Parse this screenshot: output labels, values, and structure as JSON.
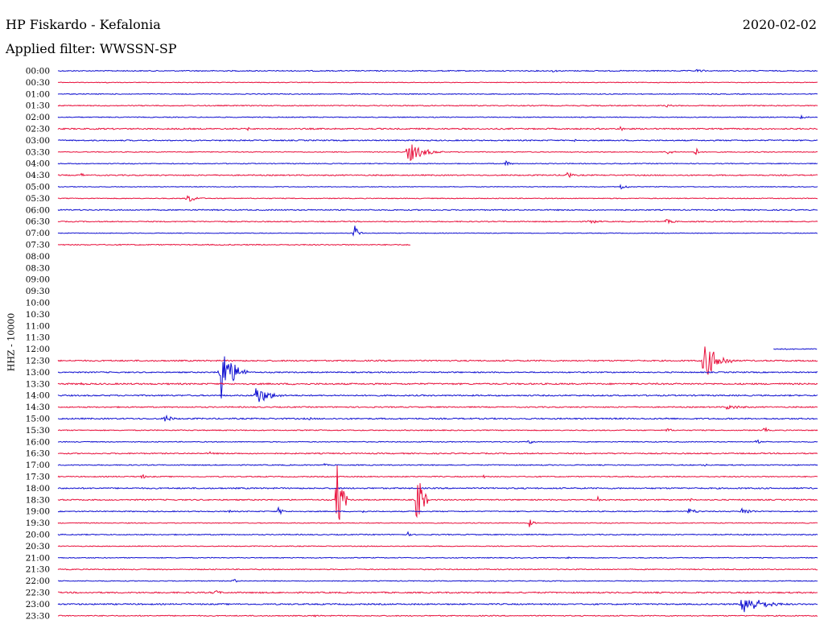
{
  "header": {
    "station": "HP Fiskardo - Kefalonia",
    "filter": "Applied filter: WWSSN-SP",
    "date": "2020-02-02"
  },
  "chart_data": {
    "type": "line",
    "title": "HP Fiskardo - Kefalonia",
    "subtitle": "Applied filter: WWSSN-SP",
    "date": "2020-02-02",
    "ylabel": "HHZ - 10000",
    "xlabel": "",
    "grid": false,
    "colors": {
      "even_rows": "#1010d0",
      "odd_rows": "#e8103c"
    },
    "row_labels": [
      "00:00",
      "00:30",
      "01:00",
      "01:30",
      "02:00",
      "02:30",
      "03:00",
      "03:30",
      "04:00",
      "04:30",
      "05:00",
      "05:30",
      "06:00",
      "06:30",
      "07:00",
      "07:30",
      "08:00",
      "08:30",
      "09:00",
      "09:30",
      "10:00",
      "10:30",
      "11:00",
      "11:30",
      "12:00",
      "12:30",
      "13:00",
      "13:30",
      "14:00",
      "14:30",
      "15:00",
      "15:30",
      "16:00",
      "16:30",
      "17:00",
      "17:30",
      "18:00",
      "18:30",
      "19:00",
      "19:30",
      "20:00",
      "20:30",
      "21:00",
      "21:30",
      "22:00",
      "22:30",
      "23:00",
      "23:30"
    ],
    "traces": [
      {
        "row": 0,
        "start": 0,
        "end": 1,
        "noise": 0.6,
        "events": [
          [
            0.65,
            2,
            20
          ],
          [
            0.84,
            2,
            40
          ]
        ]
      },
      {
        "row": 1,
        "start": 0,
        "end": 1,
        "noise": 0.4,
        "events": [
          [
            0.063,
            2,
            6
          ]
        ]
      },
      {
        "row": 2,
        "start": 0,
        "end": 1,
        "noise": 0.5,
        "events": []
      },
      {
        "row": 3,
        "start": 0,
        "end": 1,
        "noise": 0.6,
        "events": [
          [
            0.71,
            2,
            6
          ],
          [
            0.8,
            2,
            30
          ]
        ]
      },
      {
        "row": 4,
        "start": 0,
        "end": 1,
        "noise": 0.5,
        "events": [
          [
            0.976,
            3,
            20
          ]
        ]
      },
      {
        "row": 5,
        "start": 0,
        "end": 1,
        "noise": 0.8,
        "events": [
          [
            0.15,
            2,
            10
          ],
          [
            0.25,
            2,
            10
          ],
          [
            0.74,
            3,
            20
          ]
        ]
      },
      {
        "row": 6,
        "start": 0,
        "end": 1,
        "noise": 0.7,
        "events": [
          [
            0.68,
            2,
            8
          ]
        ]
      },
      {
        "row": 7,
        "start": 0,
        "end": 1,
        "noise": 0.5,
        "events": [
          [
            0.46,
            14,
            45
          ],
          [
            0.8,
            4,
            20
          ],
          [
            0.84,
            6,
            5
          ]
        ]
      },
      {
        "row": 8,
        "start": 0,
        "end": 1,
        "noise": 0.5,
        "events": [
          [
            0.59,
            4,
            12
          ]
        ]
      },
      {
        "row": 9,
        "start": 0,
        "end": 1,
        "noise": 0.7,
        "events": [
          [
            0.03,
            3,
            10
          ],
          [
            0.67,
            7,
            10
          ]
        ]
      },
      {
        "row": 10,
        "start": 0,
        "end": 1,
        "noise": 0.4,
        "events": [
          [
            0.74,
            4,
            20
          ]
        ]
      },
      {
        "row": 11,
        "start": 0,
        "end": 1,
        "noise": 0.5,
        "events": [
          [
            0.17,
            6,
            25
          ]
        ]
      },
      {
        "row": 12,
        "start": 0,
        "end": 1,
        "noise": 0.7,
        "events": []
      },
      {
        "row": 13,
        "start": 0,
        "end": 1,
        "noise": 0.6,
        "events": [
          [
            0.7,
            3,
            30
          ],
          [
            0.8,
            3,
            30
          ]
        ]
      },
      {
        "row": 14,
        "start": 0,
        "end": 1,
        "noise": 0.4,
        "events": [
          [
            0.39,
            13,
            10
          ]
        ]
      },
      {
        "row": 15,
        "start": 0,
        "end": 0.464,
        "noise": 0.6,
        "events": []
      },
      {
        "row": 24,
        "start": 0.942,
        "end": 1,
        "noise": 0.6,
        "events": []
      },
      {
        "row": 25,
        "start": 0,
        "end": 1,
        "noise": 0.8,
        "events": [
          [
            0.85,
            26,
            40
          ]
        ]
      },
      {
        "row": 26,
        "start": 0,
        "end": 1,
        "noise": 0.7,
        "events": [
          [
            0.212,
            43,
            35
          ]
        ]
      },
      {
        "row": 27,
        "start": 0,
        "end": 1,
        "noise": 0.9,
        "events": [
          [
            0.03,
            3,
            10
          ],
          [
            0.31,
            3,
            8
          ]
        ]
      },
      {
        "row": 28,
        "start": 0,
        "end": 1,
        "noise": 0.8,
        "events": [
          [
            0.26,
            13,
            40
          ]
        ]
      },
      {
        "row": 29,
        "start": 0,
        "end": 1,
        "noise": 0.7,
        "events": [
          [
            0.88,
            3,
            60
          ]
        ]
      },
      {
        "row": 30,
        "start": 0,
        "end": 1,
        "noise": 0.8,
        "events": [
          [
            0.14,
            6,
            20
          ],
          [
            0.33,
            2,
            15
          ],
          [
            0.73,
            2,
            10
          ],
          [
            0.8,
            2,
            10
          ]
        ]
      },
      {
        "row": 31,
        "start": 0,
        "end": 1,
        "noise": 0.6,
        "events": [
          [
            0.8,
            3,
            20
          ],
          [
            0.93,
            6,
            6
          ]
        ]
      },
      {
        "row": 32,
        "start": 0,
        "end": 1,
        "noise": 0.5,
        "events": [
          [
            0.62,
            4,
            10
          ],
          [
            0.92,
            4,
            6
          ]
        ]
      },
      {
        "row": 33,
        "start": 0,
        "end": 1,
        "noise": 0.7,
        "events": [
          [
            0.2,
            2,
            20
          ]
        ]
      },
      {
        "row": 34,
        "start": 0,
        "end": 1,
        "noise": 0.6,
        "events": [
          [
            0.35,
            2,
            10
          ],
          [
            0.85,
            3,
            8
          ]
        ]
      },
      {
        "row": 35,
        "start": 0,
        "end": 1,
        "noise": 0.6,
        "events": [
          [
            0.11,
            4,
            10
          ],
          [
            0.56,
            2,
            10
          ]
        ]
      },
      {
        "row": 36,
        "start": 0,
        "end": 1,
        "noise": 0.8,
        "events": []
      },
      {
        "row": 37,
        "start": 0,
        "end": 1,
        "noise": 0.7,
        "events": [
          [
            0.367,
            52,
            14
          ],
          [
            0.472,
            50,
            14
          ],
          [
            0.71,
            6,
            6
          ],
          [
            0.83,
            4,
            8
          ]
        ]
      },
      {
        "row": 38,
        "start": 0,
        "end": 1,
        "noise": 0.6,
        "events": [
          [
            0.225,
            3,
            8
          ],
          [
            0.29,
            5,
            15
          ],
          [
            0.4,
            3,
            8
          ],
          [
            0.83,
            4,
            30
          ],
          [
            0.9,
            5,
            30
          ]
        ]
      },
      {
        "row": 39,
        "start": 0,
        "end": 1,
        "noise": 0.5,
        "events": [
          [
            0.62,
            6,
            10
          ]
        ]
      },
      {
        "row": 40,
        "start": 0,
        "end": 1,
        "noise": 0.6,
        "events": [
          [
            0.46,
            4,
            6
          ]
        ]
      },
      {
        "row": 41,
        "start": 0,
        "end": 1,
        "noise": 0.5,
        "events": []
      },
      {
        "row": 42,
        "start": 0,
        "end": 1,
        "noise": 0.5,
        "events": [
          [
            0.67,
            2,
            15
          ]
        ]
      },
      {
        "row": 43,
        "start": 0,
        "end": 1,
        "noise": 0.6,
        "events": []
      },
      {
        "row": 44,
        "start": 0,
        "end": 1,
        "noise": 0.5,
        "events": [
          [
            0.23,
            4,
            10
          ]
        ]
      },
      {
        "row": 45,
        "start": 0,
        "end": 1,
        "noise": 0.8,
        "events": [
          [
            0.205,
            4,
            20
          ]
        ]
      },
      {
        "row": 46,
        "start": 0,
        "end": 1,
        "noise": 0.8,
        "events": [
          [
            0.9,
            14,
            60
          ],
          [
            0.06,
            2,
            6
          ]
        ]
      },
      {
        "row": 47,
        "start": 0,
        "end": 1,
        "noise": 0.6,
        "events": [
          [
            0.338,
            4,
            4
          ]
        ]
      }
    ]
  }
}
